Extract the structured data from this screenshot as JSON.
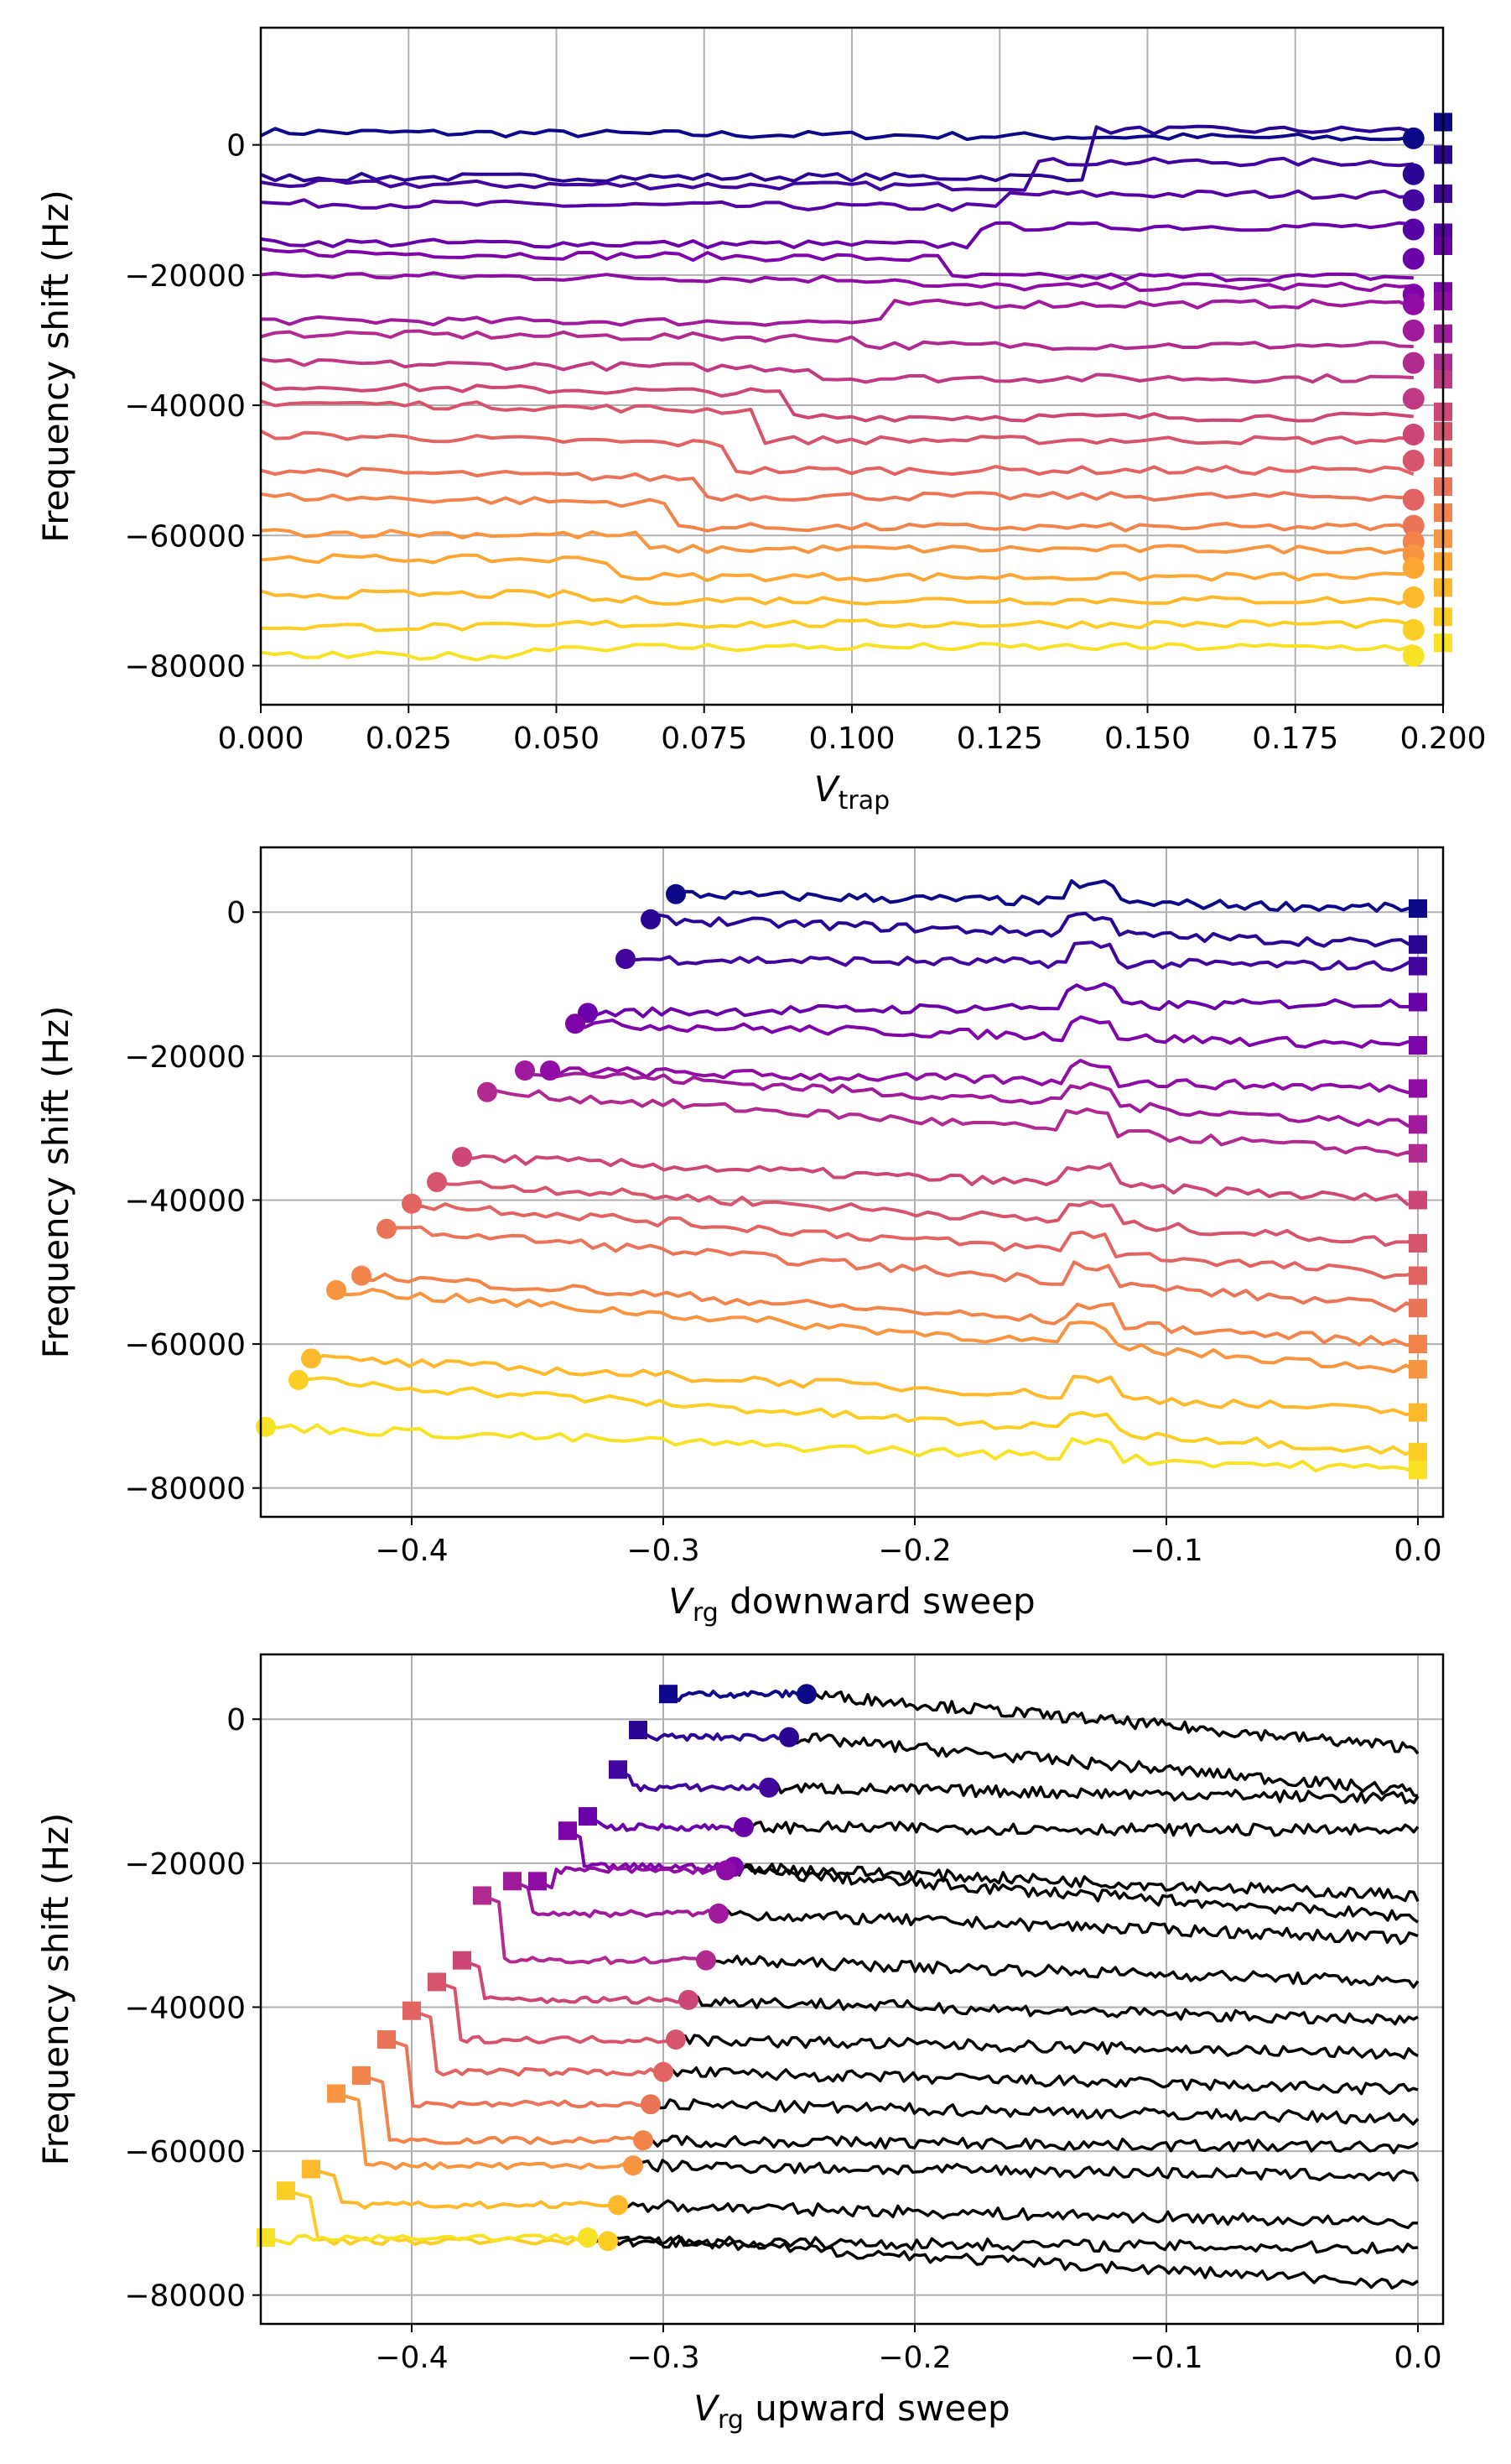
{
  "colors": {
    "palette": [
      "#0d0887",
      "#2a0593",
      "#41049d",
      "#5601a4",
      "#6a00a8",
      "#7e03a8",
      "#8f0da4",
      "#a01a9c",
      "#b12a90",
      "#bf3984",
      "#cc4778",
      "#d6556d",
      "#e16462",
      "#ea7457",
      "#f2844b",
      "#f89540",
      "#fca636",
      "#feb82c",
      "#fccd25",
      "#f7e225"
    ],
    "after_sweep": "#000000",
    "grid": "#b0b0b0"
  },
  "chart_data": [
    {
      "type": "line",
      "xlabel_main": "V",
      "xlabel_sub": "trap",
      "xlabel_tail": "",
      "ylabel": "Frequency shift (Hz)",
      "xlim": [
        0.0,
        0.2
      ],
      "ylim": [
        -86000,
        18000
      ],
      "grid": true,
      "xticks": [
        "0.000",
        "0.025",
        "0.050",
        "0.075",
        "0.100",
        "0.125",
        "0.150",
        "0.175",
        "0.200"
      ],
      "xtick_values": [
        0.0,
        0.025,
        0.05,
        0.075,
        0.1,
        0.125,
        0.15,
        0.175,
        0.2
      ],
      "yticks": [
        "0",
        "−20000",
        "−40000",
        "−60000",
        "−80000"
      ],
      "ytick_values": [
        0,
        -20000,
        -40000,
        -60000,
        -80000
      ],
      "end_marker_x": 0.195,
      "square_marker_x": 0.2,
      "series": [
        {
          "x_step": 0.0,
          "start": 2000,
          "end": 1000,
          "jump_at": 0.0,
          "jump_to": 4000,
          "square": 3500
        },
        {
          "x_step": 0.14,
          "start": -5000,
          "end": -4500,
          "jump_at": 0.14,
          "jump_to": 3000,
          "square": -1500
        },
        {
          "x_step": 0.13,
          "start": -6000,
          "end": -8500,
          "jump_at": 0.13,
          "jump_to": -2000,
          "square": -7500
        },
        {
          "x_step": 0.125,
          "start": -9000,
          "end": -13000,
          "jump_at": 0.125,
          "jump_to": -7000,
          "square": -13500
        },
        {
          "x_step": 0.12,
          "start": -15000,
          "end": -17500,
          "jump_at": 0.12,
          "jump_to": -12000,
          "square": -15500
        },
        {
          "x_step": 0.115,
          "start": -16500,
          "end": -23000,
          "jump_at": 0.115,
          "jump_to": -20000,
          "square": -22500
        },
        {
          "x_step": 0.11,
          "start": -20000,
          "end": -24500,
          "jump_at": 0.11,
          "jump_to": -21500,
          "square": -24000
        },
        {
          "x_step": 0.105,
          "start": -27000,
          "end": -28500,
          "jump_at": 0.105,
          "jump_to": -24000,
          "square": -29000
        },
        {
          "x_step": 0.1,
          "start": -29000,
          "end": -33500,
          "jump_at": 0.1,
          "jump_to": -30500,
          "square": -33500
        },
        {
          "x_step": 0.095,
          "start": -33500,
          "end": -39000,
          "jump_at": 0.095,
          "jump_to": -35500,
          "square": -36000
        },
        {
          "x_step": 0.09,
          "start": -37000,
          "end": -44500,
          "jump_at": 0.09,
          "jump_to": -41500,
          "square": -41000
        },
        {
          "x_step": 0.085,
          "start": -39500,
          "end": -48500,
          "jump_at": 0.085,
          "jump_to": -45000,
          "square": -44000
        },
        {
          "x_step": 0.08,
          "start": -44500,
          "end": -54500,
          "jump_at": 0.08,
          "jump_to": -49500,
          "square": -48000
        },
        {
          "x_step": 0.075,
          "start": -50000,
          "end": -58500,
          "jump_at": 0.075,
          "jump_to": -53500,
          "square": -52500
        },
        {
          "x_step": 0.07,
          "start": -54000,
          "end": -61000,
          "jump_at": 0.07,
          "jump_to": -58500,
          "square": -56500
        },
        {
          "x_step": 0.065,
          "start": -59500,
          "end": -63000,
          "jump_at": 0.065,
          "jump_to": -62000,
          "square": -60500
        },
        {
          "x_step": 0.06,
          "start": -63500,
          "end": -65000,
          "jump_at": 0.06,
          "jump_to": -66500,
          "square": -64000
        },
        {
          "x_step": 0.055,
          "start": -69000,
          "end": -69500,
          "jump_at": 0.055,
          "jump_to": -70000,
          "square": -68000
        },
        {
          "x_step": 0.05,
          "start": -74000,
          "end": -74500,
          "jump_at": 0.05,
          "jump_to": -73500,
          "square": -72500
        },
        {
          "x_step": 0.045,
          "start": -78500,
          "end": -78500,
          "jump_at": 0.045,
          "jump_to": -77000,
          "square": -76500
        }
      ]
    },
    {
      "type": "line",
      "xlabel_main": "V",
      "xlabel_sub": "rg",
      "xlabel_tail": " downward sweep",
      "ylabel": "Frequency shift (Hz)",
      "xlim": [
        -0.46,
        0.01
      ],
      "ylim": [
        -84000,
        9000
      ],
      "grid": true,
      "xticks": [
        "−0.4",
        "−0.3",
        "−0.2",
        "−0.1",
        "0.0"
      ],
      "xtick_values": [
        -0.4,
        -0.3,
        -0.2,
        -0.1,
        0.0
      ],
      "yticks": [
        "0",
        "−20000",
        "−40000",
        "−60000",
        "−80000"
      ],
      "ytick_values": [
        0,
        -20000,
        -40000,
        -60000,
        -80000
      ],
      "series": [
        {
          "start_x": -0.295,
          "start_y": 2500,
          "end_y": 500
        },
        {
          "start_x": -0.305,
          "start_y": -1000,
          "end_y": -4500
        },
        {
          "start_x": -0.315,
          "start_y": -6500,
          "end_y": -7500
        },
        {
          "start_x": -0.33,
          "start_y": -14000,
          "end_y": -12500
        },
        {
          "start_x": -0.335,
          "start_y": -15500,
          "end_y": -18500
        },
        {
          "start_x": -0.345,
          "start_y": -22000,
          "end_y": -24500
        },
        {
          "start_x": -0.355,
          "start_y": -22000,
          "end_y": -29500
        },
        {
          "start_x": -0.37,
          "start_y": -25000,
          "end_y": -33500
        },
        {
          "start_x": -0.38,
          "start_y": -34000,
          "end_y": -40000
        },
        {
          "start_x": -0.39,
          "start_y": -37500,
          "end_y": -46000
        },
        {
          "start_x": -0.4,
          "start_y": -40500,
          "end_y": -50500
        },
        {
          "start_x": -0.41,
          "start_y": -44000,
          "end_y": -55000
        },
        {
          "start_x": -0.42,
          "start_y": -50500,
          "end_y": -60000
        },
        {
          "start_x": -0.43,
          "start_y": -52500,
          "end_y": -63500
        },
        {
          "start_x": -0.44,
          "start_y": -62000,
          "end_y": -69500
        },
        {
          "start_x": -0.445,
          "start_y": -65000,
          "end_y": -75000
        },
        {
          "start_x": -0.458,
          "start_y": -71500,
          "end_y": -77500
        }
      ]
    },
    {
      "type": "line",
      "xlabel_main": "V",
      "xlabel_sub": "rg",
      "xlabel_tail": " upward sweep",
      "ylabel": "Frequency shift (Hz)",
      "xlim": [
        -0.46,
        0.01
      ],
      "ylim": [
        -84000,
        9000
      ],
      "grid": true,
      "xticks": [
        "−0.4",
        "−0.3",
        "−0.2",
        "−0.1",
        "0.0"
      ],
      "xtick_values": [
        -0.4,
        -0.3,
        -0.2,
        -0.1,
        0.0
      ],
      "yticks": [
        "0",
        "−20000",
        "−40000",
        "−60000",
        "−80000"
      ],
      "ytick_values": [
        0,
        -20000,
        -40000,
        -60000,
        -80000
      ],
      "series": [
        {
          "sq_x": -0.298,
          "sq_y": 3500,
          "circ_x": -0.243,
          "circ_y": 3500,
          "end_y": -4000
        },
        {
          "sq_x": -0.31,
          "sq_y": -1500,
          "circ_x": -0.25,
          "circ_y": -2500,
          "end_y": -10000
        },
        {
          "sq_x": -0.318,
          "sq_y": -7000,
          "circ_x": -0.258,
          "circ_y": -9500,
          "end_y": -11000
        },
        {
          "sq_x": -0.33,
          "sq_y": -13500,
          "circ_x": -0.268,
          "circ_y": -15000,
          "end_y": -15500
        },
        {
          "sq_x": -0.338,
          "sq_y": -15500,
          "circ_x": -0.272,
          "circ_y": -20500,
          "end_y": -24500
        },
        {
          "sq_x": -0.35,
          "sq_y": -22500,
          "circ_x": -0.275,
          "circ_y": -21000,
          "end_y": -27500
        },
        {
          "sq_x": -0.36,
          "sq_y": -22500,
          "circ_x": -0.278,
          "circ_y": -27000,
          "end_y": -30500
        },
        {
          "sq_x": -0.372,
          "sq_y": -24500,
          "circ_x": -0.283,
          "circ_y": -33500,
          "end_y": -36500
        },
        {
          "sq_x": -0.38,
          "sq_y": -33500,
          "circ_x": -0.29,
          "circ_y": -39000,
          "end_y": -42000
        },
        {
          "sq_x": -0.39,
          "sq_y": -36500,
          "circ_x": -0.295,
          "circ_y": -44500,
          "end_y": -46500
        },
        {
          "sq_x": -0.4,
          "sq_y": -40500,
          "circ_x": -0.3,
          "circ_y": -49000,
          "end_y": -51500
        },
        {
          "sq_x": -0.41,
          "sq_y": -44500,
          "circ_x": -0.305,
          "circ_y": -53500,
          "end_y": -55500
        },
        {
          "sq_x": -0.42,
          "sq_y": -49500,
          "circ_x": -0.308,
          "circ_y": -58500,
          "end_y": -59500
        },
        {
          "sq_x": -0.43,
          "sq_y": -52000,
          "circ_x": -0.312,
          "circ_y": -62000,
          "end_y": -63500
        },
        {
          "sq_x": -0.44,
          "sq_y": -62500,
          "circ_x": -0.318,
          "circ_y": -67500,
          "end_y": -70000
        },
        {
          "sq_x": -0.45,
          "sq_y": -65500,
          "circ_x": -0.322,
          "circ_y": -72500,
          "end_y": -73500
        },
        {
          "sq_x": -0.458,
          "sq_y": -72000,
          "circ_x": -0.33,
          "circ_y": -72000,
          "end_y": -78500
        }
      ]
    }
  ]
}
